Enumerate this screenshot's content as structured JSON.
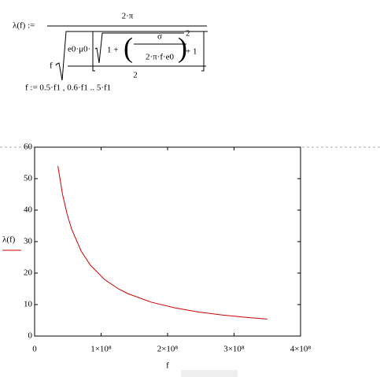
{
  "formula": {
    "lhs": "λ(f) :=",
    "numerator": "2·π",
    "f_factor": "f ·",
    "constants": "e0·μ0·",
    "one_plus": "1 +",
    "sigma": "σ",
    "inner_denominator": "2·π·f·e0",
    "power": "2",
    "plus_one": "+ 1",
    "outer_denominator": "2",
    "range_definition": "f := 0.5·f1 , 0.6·f1 .. 5·f1"
  },
  "chart_data": {
    "type": "line",
    "x_label": "f",
    "y_label": "λ(f)",
    "x": [
      35000000,
      42000000,
      49000000,
      56000000,
      70000000,
      84000000,
      105000000,
      126000000,
      140000000,
      175000000,
      210000000,
      245000000,
      280000000,
      315000000,
      350000000
    ],
    "series": [
      {
        "color": "#cc0000",
        "values": [
          54,
          45,
          38.6,
          33.8,
          27,
          22.5,
          18,
          15,
          13.5,
          10.8,
          9,
          7.7,
          6.75,
          6,
          5.4
        ]
      }
    ],
    "xlim": [
      0,
      400000000
    ],
    "ylim": [
      0,
      60
    ],
    "xticks": [
      0,
      {
        "value": 100000000,
        "label": "1×10⁸"
      },
      {
        "value": 200000000,
        "label": "2×10⁸"
      },
      {
        "value": 300000000,
        "label": "3×10⁸"
      },
      {
        "value": 400000000,
        "label": "4×10⁸"
      }
    ],
    "yticks": [
      0,
      10,
      20,
      30,
      40,
      50,
      60
    ]
  }
}
